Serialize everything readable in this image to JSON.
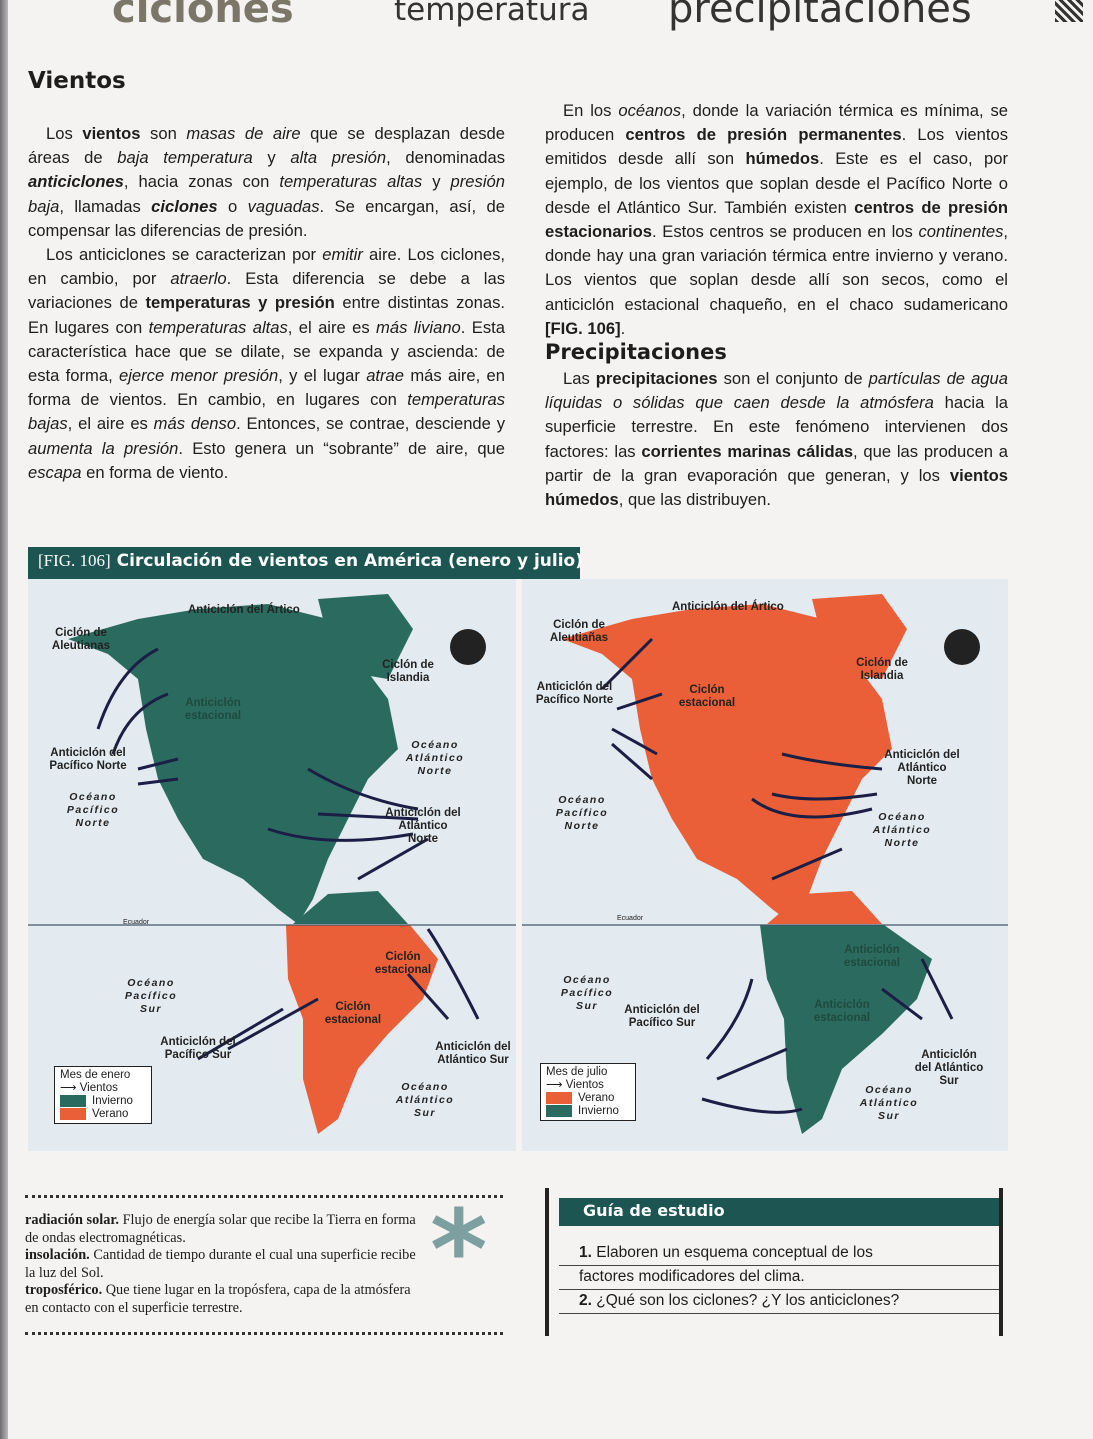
{
  "header": {
    "words": [
      "ciclones",
      "temperatura",
      "precipitaciones"
    ]
  },
  "left_heading": "Vientos",
  "left_paragraphs": [
    [
      {
        "t": "Los "
      },
      {
        "t": "vientos",
        "s": "b"
      },
      {
        "t": " son "
      },
      {
        "t": "masas de aire",
        "s": "i"
      },
      {
        "t": " que se desplazan desde áreas de "
      },
      {
        "t": "baja temperatura",
        "s": "i"
      },
      {
        "t": " y "
      },
      {
        "t": "alta presión",
        "s": "i"
      },
      {
        "t": ", denominadas "
      },
      {
        "t": "anticiclones",
        "s": "bi"
      },
      {
        "t": ", hacia zonas con "
      },
      {
        "t": "temperaturas altas",
        "s": "i"
      },
      {
        "t": " y "
      },
      {
        "t": "presión baja",
        "s": "i"
      },
      {
        "t": ", llamadas "
      },
      {
        "t": "ciclones",
        "s": "bi"
      },
      {
        "t": " o "
      },
      {
        "t": "vaguadas",
        "s": "i"
      },
      {
        "t": ". Se encargan, así, de compensar las diferencias de presión."
      }
    ],
    [
      {
        "t": "Los anticiclones se caracterizan por "
      },
      {
        "t": "emitir",
        "s": "i"
      },
      {
        "t": " aire. Los ciclones, en cambio, por "
      },
      {
        "t": "atraerlo",
        "s": "i"
      },
      {
        "t": ". Esta diferencia se debe a las variaciones de "
      },
      {
        "t": "temperaturas y presión",
        "s": "b"
      },
      {
        "t": " entre distintas zonas. En lugares con "
      },
      {
        "t": "temperaturas altas",
        "s": "i"
      },
      {
        "t": ", el aire es "
      },
      {
        "t": "más liviano",
        "s": "i"
      },
      {
        "t": ". Esta característica hace que se dilate, se expanda y ascienda: de esta forma, "
      },
      {
        "t": "ejerce menor presión",
        "s": "i"
      },
      {
        "t": ", y el lugar "
      },
      {
        "t": "atrae",
        "s": "i"
      },
      {
        "t": " más aire, en forma de vientos. En cambio, en lugares con "
      },
      {
        "t": "temperaturas bajas",
        "s": "i"
      },
      {
        "t": ", el aire es "
      },
      {
        "t": "más denso",
        "s": "i"
      },
      {
        "t": ". Entonces, se contrae, desciende y "
      },
      {
        "t": "aumenta la presión",
        "s": "i"
      },
      {
        "t": ". Esto genera un “sobrante” de aire, que "
      },
      {
        "t": "escapa",
        "s": "i"
      },
      {
        "t": " en forma de viento."
      }
    ]
  ],
  "right_paragraphs": [
    [
      {
        "t": "En los "
      },
      {
        "t": "océanos",
        "s": "i"
      },
      {
        "t": ", donde la variación térmica es mínima, se producen "
      },
      {
        "t": "centros de presión permanentes",
        "s": "b"
      },
      {
        "t": ". Los vientos emitidos desde allí son "
      },
      {
        "t": "húmedos",
        "s": "b"
      },
      {
        "t": ". Este es el caso, por ejemplo, de los vientos que soplan desde el Pacífico Norte o desde el Atlántico Sur. También existen "
      },
      {
        "t": "centros de presión estacionarios",
        "s": "b"
      },
      {
        "t": ". Estos centros se producen en los "
      },
      {
        "t": "continentes",
        "s": "i"
      },
      {
        "t": ", donde hay una gran variación térmica entre invierno y verano. Los vientos que soplan desde allí son secos, como el anticiclón estacional chaqueño, en el chaco sudamericano "
      },
      {
        "t": "[FIG. 106]",
        "s": "b"
      },
      {
        "t": "."
      }
    ]
  ],
  "right_heading": "Precipitaciones",
  "precip_paragraphs": [
    [
      {
        "t": "Las "
      },
      {
        "t": "precipitaciones",
        "s": "b"
      },
      {
        "t": " son el conjunto de "
      },
      {
        "t": "partículas de agua líquidas o sólidas que caen desde la atmósfera",
        "s": "i"
      },
      {
        "t": " hacia la superficie terrestre. En este fenómeno intervienen dos factores: las "
      },
      {
        "t": "corrientes marinas cálidas",
        "s": "b"
      },
      {
        "t": ", que las producen a partir de la gran evaporación que generan, y los "
      },
      {
        "t": "vientos húmedos",
        "s": "b"
      },
      {
        "t": ", que las distribuyen."
      }
    ]
  ],
  "figure": {
    "tag": "[FIG. 106]",
    "title": "Circulación de vientos en América (enero y julio)",
    "colors": {
      "winter": "#2b6b5f",
      "summer": "#ea5f37",
      "ocean": "#e3ebf0",
      "arrow": "#1c1f45"
    },
    "january": {
      "labels": {
        "aleutianas": "Ciclón de Aleutianas",
        "artico": "Anticiclón del Ártico",
        "islandia": "Ciclón de Islandia",
        "estacional_n": "Anticiclón estacional",
        "pacifico_n": "Anticiclón del Pacífico Norte",
        "oc_pac_n": "Océano Pacífico Norte",
        "oc_atl_n": "Océano Atlántico Norte",
        "atl_n": "Anticiclón del Atlántico Norte",
        "ecuador": "Ecuador",
        "ciclon_est1": "Ciclón estacional",
        "ciclon_est2": "Ciclón estacional",
        "oc_pac_s": "Océano Pacífico Sur",
        "pac_s": "Anticiclón del Pacífico Sur",
        "atl_s": "Anticiclón del Atlántico Sur",
        "oc_atl_s": "Océano Atlántico Sur"
      },
      "legend": {
        "title": "Mes de enero",
        "winds": "Vientos",
        "first": "Invierno",
        "second": "Verano"
      }
    },
    "july": {
      "labels": {
        "aleutianas": "Ciclón de Aleutiañas",
        "artico": "Anticiclón del Ártico",
        "islandia": "Ciclón de Islandia",
        "ciclon_est": "Ciclón estacional",
        "pacifico_n": "Anticiclón del Pacífico Norte",
        "oc_pac_n": "Océano Pacífico Norte",
        "oc_atl_n": "Océano Atlántico Norte",
        "atl_n": "Anticiclón del Atlántico Norte",
        "ecuador": "Ecuador",
        "anti_est1": "Anticiclón estacional",
        "anti_est2": "Anticiclón estacional",
        "oc_pac_s": "Océano Pacífico Sur",
        "pac_s": "Anticiclón del Pacífico Sur",
        "atl_s": "Anticiclón del Atlántico Sur",
        "oc_atl_s": "Océano Atlántico Sur"
      },
      "legend": {
        "title": "Mes de julio",
        "winds": "Vientos",
        "first": "Verano",
        "second": "Invierno"
      }
    }
  },
  "glossary": [
    {
      "term": "radiación solar.",
      "def": " Flujo de energía solar que recibe la Tierra en forma de ondas electromagnéticas."
    },
    {
      "term": "insolación.",
      "def": " Cantidad de tiempo durante el cual una superficie recibe la luz del Sol."
    },
    {
      "term": "troposférico.",
      "def": " Que tiene lugar en la tropósfera, capa de la atmósfera en contacto con el superficie terrestre."
    }
  ],
  "guide": {
    "title": "Guía de estudio",
    "q1_num": "1.",
    "q1a": "Elaboren un esquema conceptual de los",
    "q1b": "factores modificadores del clima.",
    "q2_num": "2.",
    "q2": "¿Qué son los ciclones? ¿Y los anticiclones?"
  }
}
